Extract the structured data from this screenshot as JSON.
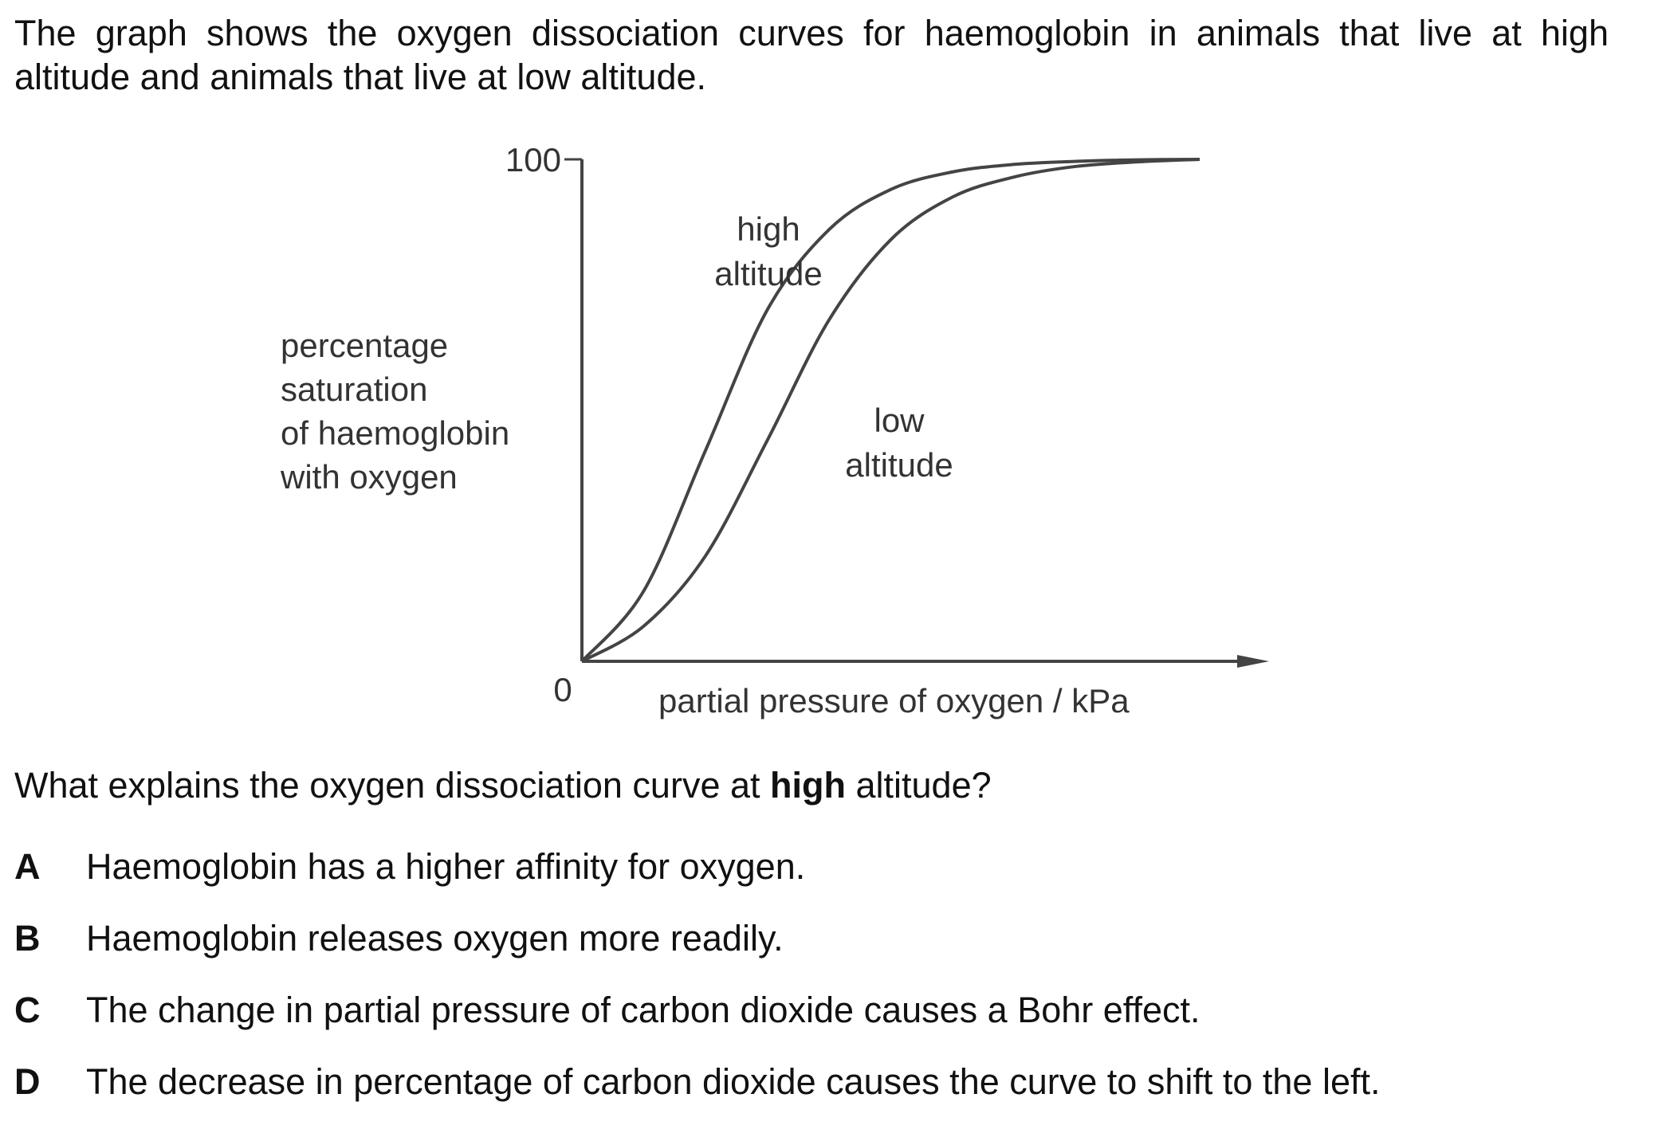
{
  "intro": {
    "line1": "The graph shows the oxygen dissociation curves for haemoglobin in animals that live at high",
    "line2": "altitude and animals that live at low altitude."
  },
  "chart_data": {
    "type": "line",
    "title": "",
    "xlabel": "partial pressure of oxygen / kPa",
    "ylabel_lines": [
      "percentage",
      "saturation",
      "of haemoglobin",
      "with oxygen"
    ],
    "y_ticks": [
      "100",
      "0"
    ],
    "ylim": [
      0,
      100
    ],
    "grid": false,
    "series": [
      {
        "name_lines": [
          "high",
          "altitude"
        ],
        "x": [
          0,
          10,
          20,
          30,
          40,
          50,
          60,
          70,
          80,
          90,
          100
        ],
        "values": [
          0,
          14,
          42,
          70,
          86,
          94,
          97.5,
          99,
          99.6,
          99.9,
          100
        ]
      },
      {
        "name_lines": [
          "low",
          "altitude"
        ],
        "x": [
          0,
          10,
          20,
          30,
          40,
          50,
          60,
          70,
          80,
          90,
          100
        ],
        "values": [
          0,
          7,
          21,
          44,
          68,
          84,
          92.5,
          96.5,
          98.6,
          99.5,
          100
        ]
      }
    ]
  },
  "question": {
    "before": "What explains the oxygen dissociation curve at ",
    "emphasis": "high",
    "after": " altitude?"
  },
  "options": [
    {
      "letter": "A",
      "text": "Haemoglobin has a higher affinity for oxygen."
    },
    {
      "letter": "B",
      "text": "Haemoglobin releases oxygen more readily."
    },
    {
      "letter": "C",
      "text": "The change in partial pressure of carbon dioxide causes a Bohr effect."
    },
    {
      "letter": "D",
      "text": "The decrease in percentage of carbon dioxide causes the curve to shift to the left."
    }
  ]
}
